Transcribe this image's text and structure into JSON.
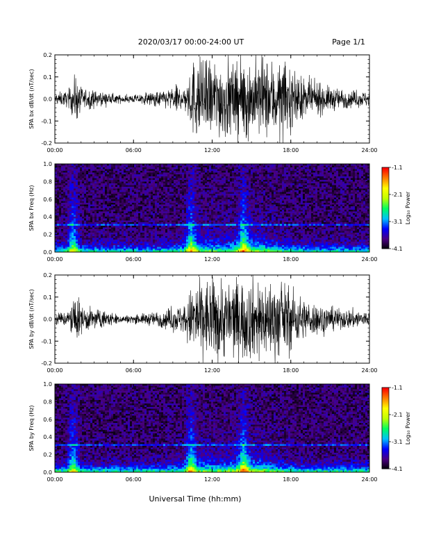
{
  "header": {
    "title": "2020/03/17  00:00-24:00 UT",
    "page": "Page 1/1"
  },
  "footer": {
    "xlabel": "Universal Time (hh:mm)"
  },
  "colorbar": {
    "label": "Log₁₀ Power",
    "ticks": [
      "-1.1",
      "-2.1",
      "-3.1",
      "-4.1"
    ],
    "tick_values": [
      -1.1,
      -2.1,
      -3.1,
      -4.1
    ],
    "range": [
      -4.1,
      -1.1
    ],
    "colormap": [
      "#000000",
      "#4b0082",
      "#0000ff",
      "#00c0ff",
      "#00ff60",
      "#c0ff00",
      "#ffff00",
      "#ff8000",
      "#ff0000"
    ]
  },
  "chart_data": [
    {
      "type": "line",
      "ylabel": "SPA bx dB/dt (nT/sec)",
      "ylim": [
        -0.2,
        0.2
      ],
      "yticks": [
        "0.2",
        "0.1",
        "0.0",
        "-0.1",
        "-0.2"
      ],
      "xlim": [
        0,
        24
      ],
      "xticks": [
        "00:00",
        "06:00",
        "12:00",
        "18:00",
        "24:00"
      ],
      "line_color": "#000000",
      "x_hours": [
        0,
        1,
        1.6,
        2,
        3,
        4,
        5,
        6,
        7,
        8,
        9,
        10,
        10.6,
        11,
        12,
        13,
        14,
        15,
        16,
        17,
        18,
        19,
        20,
        21,
        22,
        23,
        24
      ],
      "envelope_nT_per_s": [
        0.03,
        0.04,
        0.12,
        0.06,
        0.04,
        0.03,
        0.02,
        0.02,
        0.03,
        0.04,
        0.06,
        0.07,
        0.2,
        0.2,
        0.2,
        0.2,
        0.2,
        0.2,
        0.2,
        0.2,
        0.15,
        0.1,
        0.08,
        0.06,
        0.05,
        0.04,
        0.04
      ]
    },
    {
      "type": "heatmap",
      "ylabel": "SPA bx Freq (Hz)",
      "ylim": [
        0.0,
        1.0
      ],
      "yticks": [
        "1.0",
        "0.8",
        "0.6",
        "0.4",
        "0.2",
        "0.0"
      ],
      "xlim": [
        0,
        24
      ],
      "xticks": [
        "00:00",
        "06:00",
        "12:00",
        "18:00",
        "24:00"
      ],
      "z_range": [
        -4.1,
        -1.1
      ],
      "bright_times_hours": [
        1.4,
        10.4,
        14.4
      ],
      "enhanced_band_hz": [
        0.3,
        0.32
      ],
      "background_log_power": -3.8,
      "low_freq_log_power": -2.6
    },
    {
      "type": "line",
      "ylabel": "SPA by dB/dt (nT/sec)",
      "ylim": [
        -0.2,
        0.2
      ],
      "yticks": [
        "0.2",
        "0.1",
        "0.0",
        "-0.1",
        "-0.2"
      ],
      "xlim": [
        0,
        24
      ],
      "xticks": [
        "00:00",
        "06:00",
        "12:00",
        "18:00",
        "24:00"
      ],
      "line_color": "#000000",
      "x_hours": [
        0,
        1,
        1.6,
        2,
        3,
        4,
        5,
        6,
        7,
        8,
        9,
        10,
        10.6,
        11,
        12,
        13,
        14,
        15,
        16,
        17,
        18,
        19,
        20,
        21,
        22,
        23,
        24
      ],
      "envelope_nT_per_s": [
        0.03,
        0.04,
        0.13,
        0.07,
        0.05,
        0.04,
        0.02,
        0.02,
        0.03,
        0.04,
        0.06,
        0.08,
        0.2,
        0.2,
        0.2,
        0.2,
        0.2,
        0.2,
        0.2,
        0.2,
        0.16,
        0.1,
        0.08,
        0.06,
        0.05,
        0.05,
        0.04
      ]
    },
    {
      "type": "heatmap",
      "ylabel": "SPA by Freq (Hz)",
      "ylim": [
        0.0,
        1.0
      ],
      "yticks": [
        "1.0",
        "0.8",
        "0.6",
        "0.4",
        "0.2",
        "0.0"
      ],
      "xlim": [
        0,
        24
      ],
      "xticks": [
        "00:00",
        "06:00",
        "12:00",
        "18:00",
        "24:00"
      ],
      "z_range": [
        -4.1,
        -1.1
      ],
      "bright_times_hours": [
        1.4,
        10.4,
        14.4
      ],
      "enhanced_band_hz": [
        0.3,
        0.32
      ],
      "background_log_power": -3.8,
      "low_freq_log_power": -2.5
    }
  ]
}
